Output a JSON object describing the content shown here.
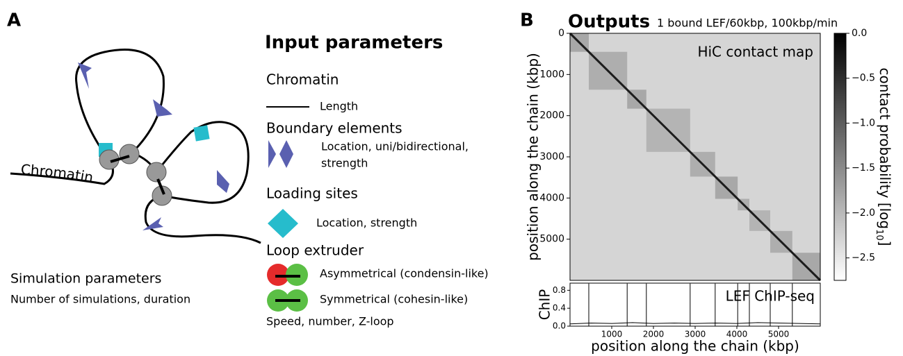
{
  "panel_a": {
    "label": "A",
    "chromatin_label": "Chromatin",
    "title": "Input parameters",
    "chromatin": "Chromatin",
    "length": "Length",
    "boundary": "Boundary elements",
    "boundary_desc_1": "Location, uni/bidirectional,",
    "boundary_desc_2": "strength",
    "loading": "Loading sites",
    "loading_desc": "Location, strength",
    "extruder": "Loop extruder",
    "asym": "Asymmetrical (condensin-like)",
    "sym": "Symmetrical (cohesin-like)",
    "extruder_desc": "Speed, number, Z-loop",
    "sim_title": "Simulation parameters",
    "sim_desc": "Number of simulations, duration"
  },
  "panel_b": {
    "label": "B",
    "title": "Outputs",
    "subtitle": "1 bound LEF/60kbp, 100kbp/min"
  },
  "chart_data": [
    {
      "type": "heatmap",
      "annotation": "HiC contact map",
      "ylabel": "position along the chain (kbp)",
      "colorbar_label": "contact probability [log",
      "colorbar_label_sub": "10",
      "colorbar_label_end": "]",
      "xlim": [
        0,
        6000
      ],
      "ylim": [
        0,
        6000
      ],
      "yticks": [
        0,
        1000,
        2000,
        3000,
        4000,
        5000
      ],
      "clim": [
        -2.75,
        0
      ],
      "cticks": [
        {
          "value": 0,
          "label": "0.0"
        },
        {
          "value": -0.5,
          "label": "−0.5"
        },
        {
          "value": -1,
          "label": "−1.0"
        },
        {
          "value": -1.5,
          "label": "−1.5"
        },
        {
          "value": -2,
          "label": "−2.0"
        },
        {
          "value": -2.5,
          "label": "−2.5"
        }
      ],
      "background_value": -2.3,
      "diagonal_value": -0.3,
      "domains": [
        0,
        450,
        1370,
        1830,
        2880,
        3480,
        4020,
        4300,
        4800,
        5330,
        6000
      ],
      "domain_values": [
        -1.5,
        -1.6,
        -1.5,
        -1.7,
        -1.6,
        -1.5,
        -1.6,
        -1.7,
        -1.6,
        -1.5
      ]
    },
    {
      "type": "line",
      "annotation": "LEF ChIP-seq",
      "xlabel": "position along the chain (kbp)",
      "ylabel": "ChIP",
      "xlim": [
        0,
        6000
      ],
      "ylim": [
        0,
        0.96
      ],
      "xticks": [
        1000,
        2000,
        3000,
        4000,
        5000
      ],
      "yticks": [
        {
          "value": 0,
          "label": "0.0"
        },
        {
          "value": 0.4,
          "label": "0.4"
        },
        {
          "value": 0.8,
          "label": "0.8"
        }
      ],
      "color": "#000000",
      "x": [
        0,
        500,
        1000,
        1500,
        2000,
        2500,
        3000,
        3500,
        4000,
        4500,
        5000,
        5500,
        6000
      ],
      "values": [
        0.05,
        0.07,
        0.06,
        0.08,
        0.06,
        0.07,
        0.06,
        0.07,
        0.06,
        0.08,
        0.07,
        0.06,
        0.05
      ],
      "peak_x": [
        450,
        1370,
        1830,
        2880,
        3480,
        4020,
        4300,
        4800,
        5330
      ],
      "peak_values": [
        0.95,
        0.95,
        0.95,
        0.95,
        0.95,
        0.95,
        0.95,
        0.95,
        0.95
      ]
    }
  ]
}
